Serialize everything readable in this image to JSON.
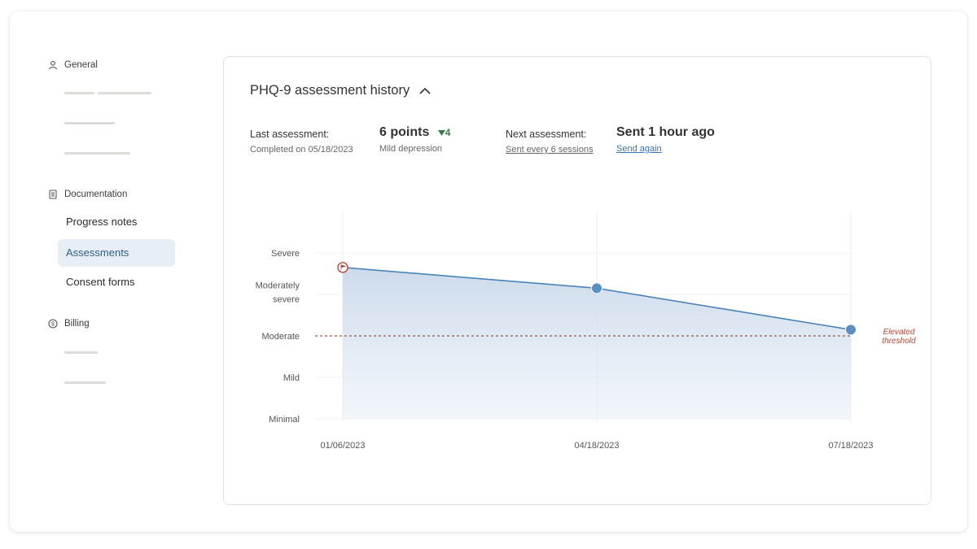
{
  "sidebar": {
    "sections": [
      {
        "label": "General",
        "icon": "person-icon"
      },
      {
        "label": "Documentation",
        "icon": "document-icon"
      },
      {
        "label": "Billing",
        "icon": "currency-icon"
      }
    ],
    "items": [
      {
        "label": "Progress notes"
      },
      {
        "label": "Assessments",
        "active": true
      },
      {
        "label": "Consent forms"
      }
    ]
  },
  "card": {
    "title": "PHQ-9 assessment history",
    "collapse_icon": "chevron-up-icon",
    "last": {
      "label": "Last assessment:",
      "completed": "Completed on 05/18/2023",
      "points": "6 points",
      "delta": "4",
      "delta_icon": "triangle-down-icon",
      "severity": "Mild depression"
    },
    "next": {
      "label": "Next assessment:",
      "frequency": "Sent every 6 sessions",
      "status": "Sent 1 hour ago",
      "send_again": "Send again"
    }
  },
  "colors": {
    "accent": "#3a75b0",
    "line": "#4a84b8",
    "threshold": "#b04a3a",
    "positive_delta": "#3e7a46",
    "active_nav_bg": "#e8eef6"
  },
  "chart_data": {
    "type": "area",
    "x": [
      "01/06/2023",
      "04/18/2023",
      "07/18/2023"
    ],
    "y_categories": [
      "Minimal",
      "Mild",
      "Moderate",
      "Moderately severe",
      "Severe"
    ],
    "y_tick_labels": [
      "Minimal",
      "Mild",
      "Moderate",
      "Moderately\nsevere",
      "Severe"
    ],
    "series": [
      {
        "values": [
          3.65,
          3.15,
          2.15
        ]
      }
    ],
    "point_markers": [
      "flag-icon",
      "dot",
      "dot"
    ],
    "threshold": {
      "value": 2,
      "label": "Elevated\nthreshold"
    },
    "xlabel": "",
    "ylabel": "",
    "grid": true
  }
}
